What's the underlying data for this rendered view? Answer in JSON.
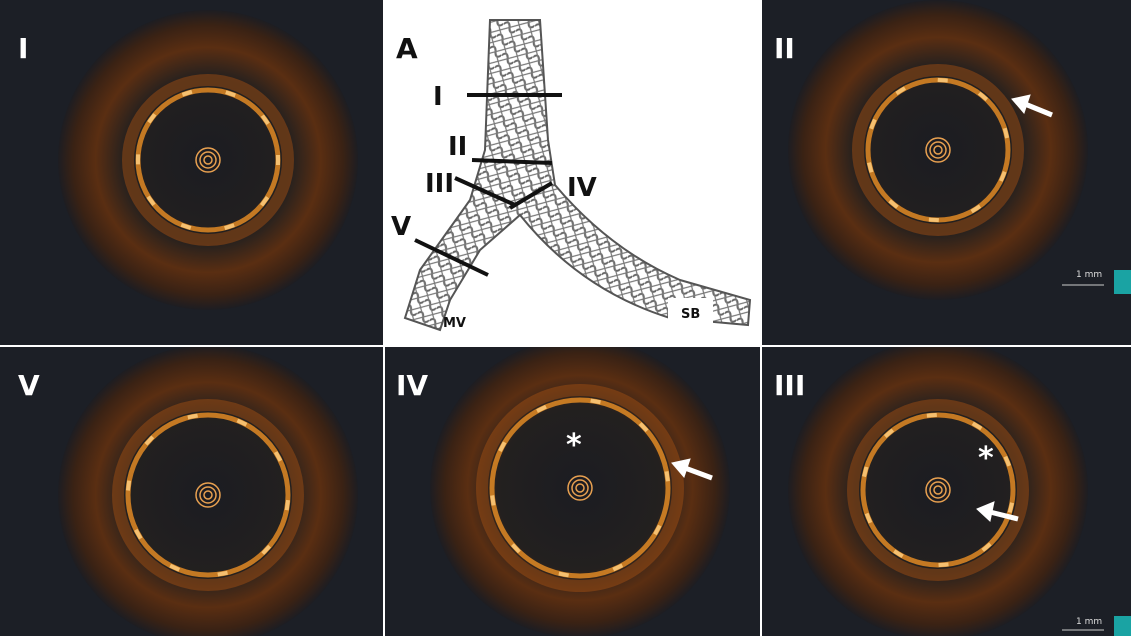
{
  "panels": [
    {
      "label": "I"
    },
    {
      "label": "A"
    },
    {
      "label": "II"
    },
    {
      "label": "V"
    },
    {
      "label": "IV"
    },
    {
      "label": "III"
    }
  ],
  "diagram": {
    "section_labels": [
      "I",
      "II",
      "III",
      "IV",
      "V"
    ],
    "main_vessel": "MV",
    "side_branch": "SB"
  },
  "scale_bars": [
    "1 mm",
    "1 mm"
  ],
  "asterisks": [
    "*",
    "*"
  ]
}
